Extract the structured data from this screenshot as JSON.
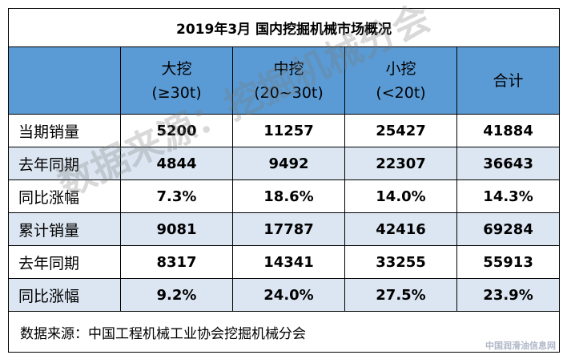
{
  "table": {
    "title": "2019年3月  国内挖掘机械市场概况",
    "headers": [
      {
        "name": "",
        "spec": ""
      },
      {
        "name": "大挖",
        "spec": "(≥30t)"
      },
      {
        "name": "中挖",
        "spec": "(20~30t)"
      },
      {
        "name": "小挖",
        "spec": "(<20t)"
      },
      {
        "name": "合计",
        "spec": ""
      }
    ],
    "rows": [
      [
        "当期销量",
        "5200",
        "11257",
        "25427",
        "41884"
      ],
      [
        "去年同期",
        "4844",
        "9492",
        "22307",
        "36643"
      ],
      [
        "同比涨幅",
        "7.3%",
        "18.6%",
        "14.0%",
        "14.3%"
      ],
      [
        "累计销量",
        "9081",
        "17787",
        "42416",
        "69284"
      ],
      [
        "去年同期",
        "8317",
        "14341",
        "33255",
        "55913"
      ],
      [
        "同比涨幅",
        "9.2%",
        "24.0%",
        "27.5%",
        "23.9%"
      ]
    ],
    "source": "数据来源：中国工程机械工业协会挖掘机械分会"
  },
  "watermark": "数据来源：挖掘机械分会",
  "logo": "中国润滑油信息网"
}
